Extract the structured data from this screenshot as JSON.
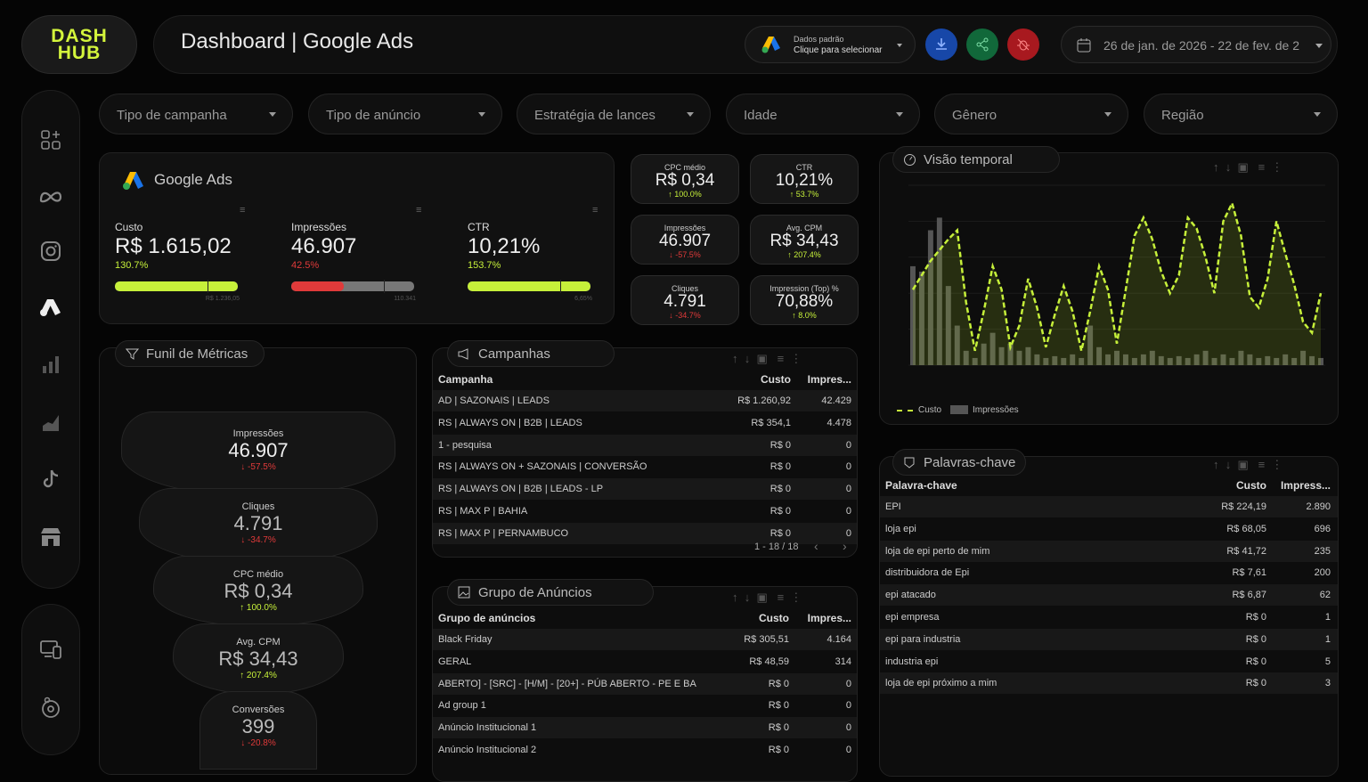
{
  "brand": {
    "logo_line1": "DASH",
    "logo_line2": "HUB"
  },
  "header": {
    "title": "Dashboard | Google Ads",
    "source_line1": "Dados padrão",
    "source_line2": "Clique para selecionar",
    "date_range": "26 de jan. de 2026 - 22 de fev. de 2"
  },
  "colors": {
    "accent": "#c6f03a",
    "red": "#e03a3a",
    "download_btn": "#1747a8",
    "share_btn": "#11683a",
    "bug_btn": "#a8191f"
  },
  "filters": [
    "Tipo de campanha",
    "Tipo de anúncio",
    "Estratégia de lances",
    "Idade",
    "Gênero",
    "Região"
  ],
  "google_card": {
    "title": "Google Ads",
    "metrics": [
      {
        "label": "Custo",
        "value": "R$ 1.615,02",
        "pct": "130.7%",
        "target": "R$ 1.236,05",
        "progress": 1.0,
        "status": "good"
      },
      {
        "label": "Impressões",
        "value": "46.907",
        "pct": "42.5%",
        "target": "110.341",
        "progress": 0.43,
        "status": "bad"
      },
      {
        "label": "CTR",
        "value": "10,21%",
        "pct": "153.7%",
        "target": "6,65%",
        "progress": 1.0,
        "status": "good"
      }
    ]
  },
  "kpis": [
    {
      "label": "CPC médio",
      "value": "R$ 0,34",
      "pct": "100.0%",
      "dir": "up"
    },
    {
      "label": "CTR",
      "value": "10,21%",
      "pct": "53.7%",
      "dir": "up"
    },
    {
      "label": "Impressões",
      "value": "46.907",
      "pct": "-57.5%",
      "dir": "down"
    },
    {
      "label": "Avg. CPM",
      "value": "R$ 34,43",
      "pct": "207.4%",
      "dir": "up"
    },
    {
      "label": "Cliques",
      "value": "4.791",
      "pct": "-34.7%",
      "dir": "down"
    },
    {
      "label": "Impression (Top) %",
      "value": "70,88%",
      "pct": "8.0%",
      "dir": "up"
    }
  ],
  "funnel": {
    "title": "Funil de Métricas",
    "stages": [
      {
        "label": "Impressões",
        "value": "46.907",
        "pct": "-57.5%",
        "dir": "down"
      },
      {
        "label": "Cliques",
        "value": "4.791",
        "pct": "-34.7%",
        "dir": "down"
      },
      {
        "label": "CPC médio",
        "value": "R$ 0,34",
        "pct": "100.0%",
        "dir": "up"
      },
      {
        "label": "Avg. CPM",
        "value": "R$ 34,43",
        "pct": "207.4%",
        "dir": "up"
      },
      {
        "label": "Conversões",
        "value": "399",
        "pct": "-20.8%",
        "dir": "down"
      }
    ]
  },
  "campanhas": {
    "title": "Campanhas",
    "headers": [
      "Campanha",
      "Custo",
      "Impres..."
    ],
    "rows": [
      [
        "AD | SAZONAIS | LEADS",
        "R$ 1.260,92",
        "42.429"
      ],
      [
        "RS | ALWAYS ON | B2B | LEADS",
        "R$ 354,1",
        "4.478"
      ],
      [
        "1 - pesquisa",
        "R$ 0",
        "0"
      ],
      [
        "RS | ALWAYS ON + SAZONAIS | CONVERSÃO",
        "R$ 0",
        "0"
      ],
      [
        "RS | ALWAYS ON | B2B | LEADS - LP",
        "R$ 0",
        "0"
      ],
      [
        "RS | MAX P | BAHIA",
        "R$ 0",
        "0"
      ],
      [
        "RS | MAX P | PERNAMBUCO",
        "R$ 0",
        "0"
      ]
    ],
    "pagination": "1 - 18 / 18"
  },
  "grupos": {
    "title": "Grupo de Anúncios",
    "headers": [
      "Grupo de anúncios",
      "Custo",
      "Impres..."
    ],
    "rows": [
      [
        "Black Friday",
        "R$ 305,51",
        "4.164"
      ],
      [
        "GERAL",
        "R$ 48,59",
        "314"
      ],
      [
        "ABERTO] - [SRC] - [H/M] - [20+] - PÚB ABERTO - PE E BA",
        "R$ 0",
        "0"
      ],
      [
        "Ad group 1",
        "R$ 0",
        "0"
      ],
      [
        "Anúncio Institucional 1",
        "R$ 0",
        "0"
      ],
      [
        "Anúncio Institucional 2",
        "R$ 0",
        "0"
      ]
    ]
  },
  "palavras": {
    "title": "Palavras-chave",
    "headers": [
      "Palavra-chave",
      "Custo",
      "Impress..."
    ],
    "rows": [
      [
        "EPI",
        "R$ 224,19",
        "2.890"
      ],
      [
        "loja epi",
        "R$ 68,05",
        "696"
      ],
      [
        "loja de epi perto de mim",
        "R$ 41,72",
        "235"
      ],
      [
        "distribuidora de Epi",
        "R$ 7,61",
        "200"
      ],
      [
        "epi atacado",
        "R$ 6,87",
        "62"
      ],
      [
        "epi empresa",
        "R$ 0",
        "1"
      ],
      [
        "epi para industria",
        "R$ 0",
        "1"
      ],
      [
        "industria epi",
        "R$ 0",
        "5"
      ],
      [
        "loja de epi próximo a mim",
        "R$ 0",
        "3"
      ]
    ]
  },
  "chart_data": {
    "type": "line",
    "title": "Visão temporal",
    "grid": true,
    "legend_position": "bottom-left",
    "series": [
      {
        "name": "Custo",
        "type": "line",
        "color": "#c6f03a",
        "values": [
          42,
          50,
          58,
          64,
          70,
          75,
          35,
          8,
          30,
          55,
          42,
          10,
          22,
          48,
          32,
          10,
          28,
          44,
          30,
          8,
          30,
          55,
          42,
          12,
          42,
          72,
          82,
          70,
          52,
          40,
          50,
          82,
          76,
          60,
          40,
          80,
          90,
          72,
          38,
          32,
          48,
          80,
          62,
          45,
          24,
          18,
          40
        ]
      },
      {
        "name": "Impressões",
        "type": "bar",
        "color": "#555555",
        "values": [
          55,
          52,
          75,
          82,
          44,
          22,
          8,
          4,
          12,
          18,
          10,
          12,
          8,
          10,
          6,
          4,
          5,
          4,
          6,
          4,
          22,
          10,
          6,
          8,
          6,
          4,
          6,
          8,
          5,
          4,
          5,
          4,
          6,
          8,
          4,
          6,
          4,
          8,
          6,
          4,
          5,
          4,
          6,
          4,
          8,
          5,
          4
        ]
      }
    ],
    "ylim": [
      0,
      100
    ]
  }
}
